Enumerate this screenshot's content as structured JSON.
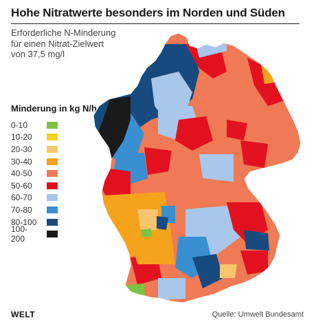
{
  "title": "Hohe Nitratwerte besonders im Norden und Süden",
  "subtitle_lines": [
    "Erforderliche N-Minderung",
    "für einen Nitrat-Zielwert",
    "von 37,5 mg/l"
  ],
  "legend": {
    "title": "Minderung in kg N/ha",
    "items": [
      {
        "label": "0-10",
        "color": "#7dc242"
      },
      {
        "label": "10-20",
        "color": "#f5d31a"
      },
      {
        "label": "20-30",
        "color": "#f8c56d"
      },
      {
        "label": "30-40",
        "color": "#f5a31a"
      },
      {
        "label": "40-50",
        "color": "#ef7a55"
      },
      {
        "label": "50-60",
        "color": "#e3111f"
      },
      {
        "label": "60-70",
        "color": "#a9c7ea"
      },
      {
        "label": "70-80",
        "color": "#3a8fd1"
      },
      {
        "label": "80-100",
        "color": "#174a7e"
      },
      {
        "label": "100-200",
        "color": "#1a1a1a"
      }
    ]
  },
  "brand": "WELT",
  "source": "Quelle: Umwelt Bundesamt"
}
